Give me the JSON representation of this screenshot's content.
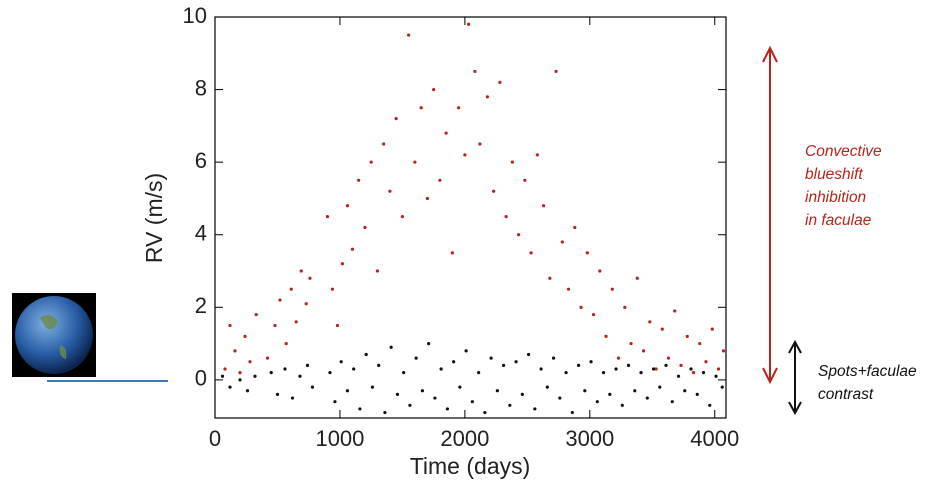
{
  "chart_data": {
    "type": "scatter",
    "xlabel": "Time (days)",
    "ylabel": "RV (m/s)",
    "xlim": [
      0,
      4090
    ],
    "ylim": [
      -1.05,
      10
    ],
    "xticks": [
      0,
      1000,
      2000,
      3000,
      4000
    ],
    "yticks": [
      0,
      2,
      4,
      6,
      8,
      10
    ],
    "series": [
      {
        "color": "#b8231c",
        "x": [
          80,
          120,
          160,
          200,
          240,
          280,
          330,
          420,
          480,
          520,
          570,
          610,
          650,
          690,
          730,
          760,
          900,
          940,
          980,
          1020,
          1060,
          1100,
          1150,
          1200,
          1250,
          1300,
          1350,
          1400,
          1450,
          1500,
          1550,
          1600,
          1650,
          1700,
          1750,
          1800,
          1850,
          1900,
          1950,
          2000,
          2030,
          2080,
          2120,
          2180,
          2230,
          2280,
          2330,
          2380,
          2430,
          2480,
          2530,
          2580,
          2630,
          2680,
          2730,
          2780,
          2830,
          2880,
          2930,
          2980,
          3030,
          3080,
          3130,
          3180,
          3230,
          3280,
          3330,
          3380,
          3430,
          3480,
          3530,
          3580,
          3630,
          3680,
          3730,
          3780,
          3830,
          3880,
          3930,
          3980,
          4030,
          4070
        ],
        "values": [
          0.3,
          1.5,
          0.8,
          0.2,
          1.2,
          0.5,
          1.8,
          0.6,
          1.5,
          2.2,
          1.0,
          2.5,
          1.6,
          3.0,
          2.1,
          2.8,
          4.5,
          2.5,
          1.5,
          3.2,
          4.8,
          3.6,
          5.5,
          4.2,
          6.0,
          3.0,
          6.5,
          5.2,
          7.2,
          4.5,
          9.5,
          6.0,
          7.5,
          5.0,
          8.0,
          5.5,
          6.8,
          3.5,
          7.5,
          6.2,
          9.8,
          8.5,
          6.5,
          7.8,
          5.2,
          8.2,
          4.5,
          6.0,
          4.0,
          5.5,
          3.5,
          6.2,
          4.8,
          2.8,
          8.5,
          3.8,
          2.5,
          4.2,
          2.0,
          3.5,
          1.8,
          3.0,
          1.2,
          2.5,
          0.6,
          2.0,
          1.0,
          2.8,
          0.8,
          1.6,
          0.3,
          1.4,
          0.6,
          1.9,
          0.4,
          1.2,
          0.2,
          1.0,
          0.5,
          1.4,
          0.3,
          0.8
        ]
      },
      {
        "color": "#111111",
        "x": [
          60,
          120,
          200,
          260,
          320,
          450,
          500,
          560,
          620,
          680,
          740,
          780,
          920,
          960,
          1010,
          1060,
          1110,
          1160,
          1210,
          1260,
          1310,
          1360,
          1410,
          1460,
          1510,
          1560,
          1610,
          1660,
          1710,
          1760,
          1810,
          1860,
          1910,
          1960,
          2010,
          2060,
          2110,
          2160,
          2210,
          2260,
          2310,
          2360,
          2410,
          2460,
          2510,
          2560,
          2610,
          2660,
          2710,
          2760,
          2810,
          2860,
          2910,
          2960,
          3010,
          3060,
          3110,
          3160,
          3210,
          3260,
          3310,
          3360,
          3410,
          3460,
          3510,
          3560,
          3610,
          3660,
          3710,
          3760,
          3810,
          3860,
          3910,
          3960,
          4010,
          4060
        ],
        "values": [
          0.1,
          -0.2,
          0.0,
          -0.3,
          0.1,
          0.2,
          -0.4,
          0.3,
          -0.5,
          0.1,
          0.4,
          -0.2,
          0.2,
          -0.6,
          0.5,
          -0.3,
          0.3,
          -0.8,
          0.7,
          -0.2,
          0.4,
          -0.9,
          0.9,
          -0.4,
          0.2,
          -0.7,
          0.6,
          -0.3,
          1.0,
          -0.5,
          0.3,
          -0.8,
          0.5,
          -0.2,
          0.8,
          -0.6,
          0.2,
          -0.9,
          0.6,
          -0.3,
          0.4,
          -0.7,
          0.5,
          -0.4,
          0.7,
          -0.8,
          0.3,
          -0.2,
          0.6,
          -0.5,
          0.2,
          -0.9,
          0.4,
          -0.3,
          0.5,
          -0.6,
          0.2,
          -0.4,
          0.3,
          -0.7,
          0.4,
          -0.3,
          0.2,
          -0.5,
          0.3,
          -0.2,
          0.4,
          -0.6,
          0.1,
          -0.3,
          0.3,
          -0.4,
          0.2,
          -0.7,
          0.1,
          -0.2
        ]
      }
    ],
    "annotations": [
      {
        "lines": [
          "Convective",
          "blueshift",
          "inhibition",
          "in faculae"
        ],
        "color": "#b8231c"
      },
      {
        "lines": [
          "Spots+faculae",
          "contrast"
        ],
        "color": "#111111"
      }
    ]
  }
}
